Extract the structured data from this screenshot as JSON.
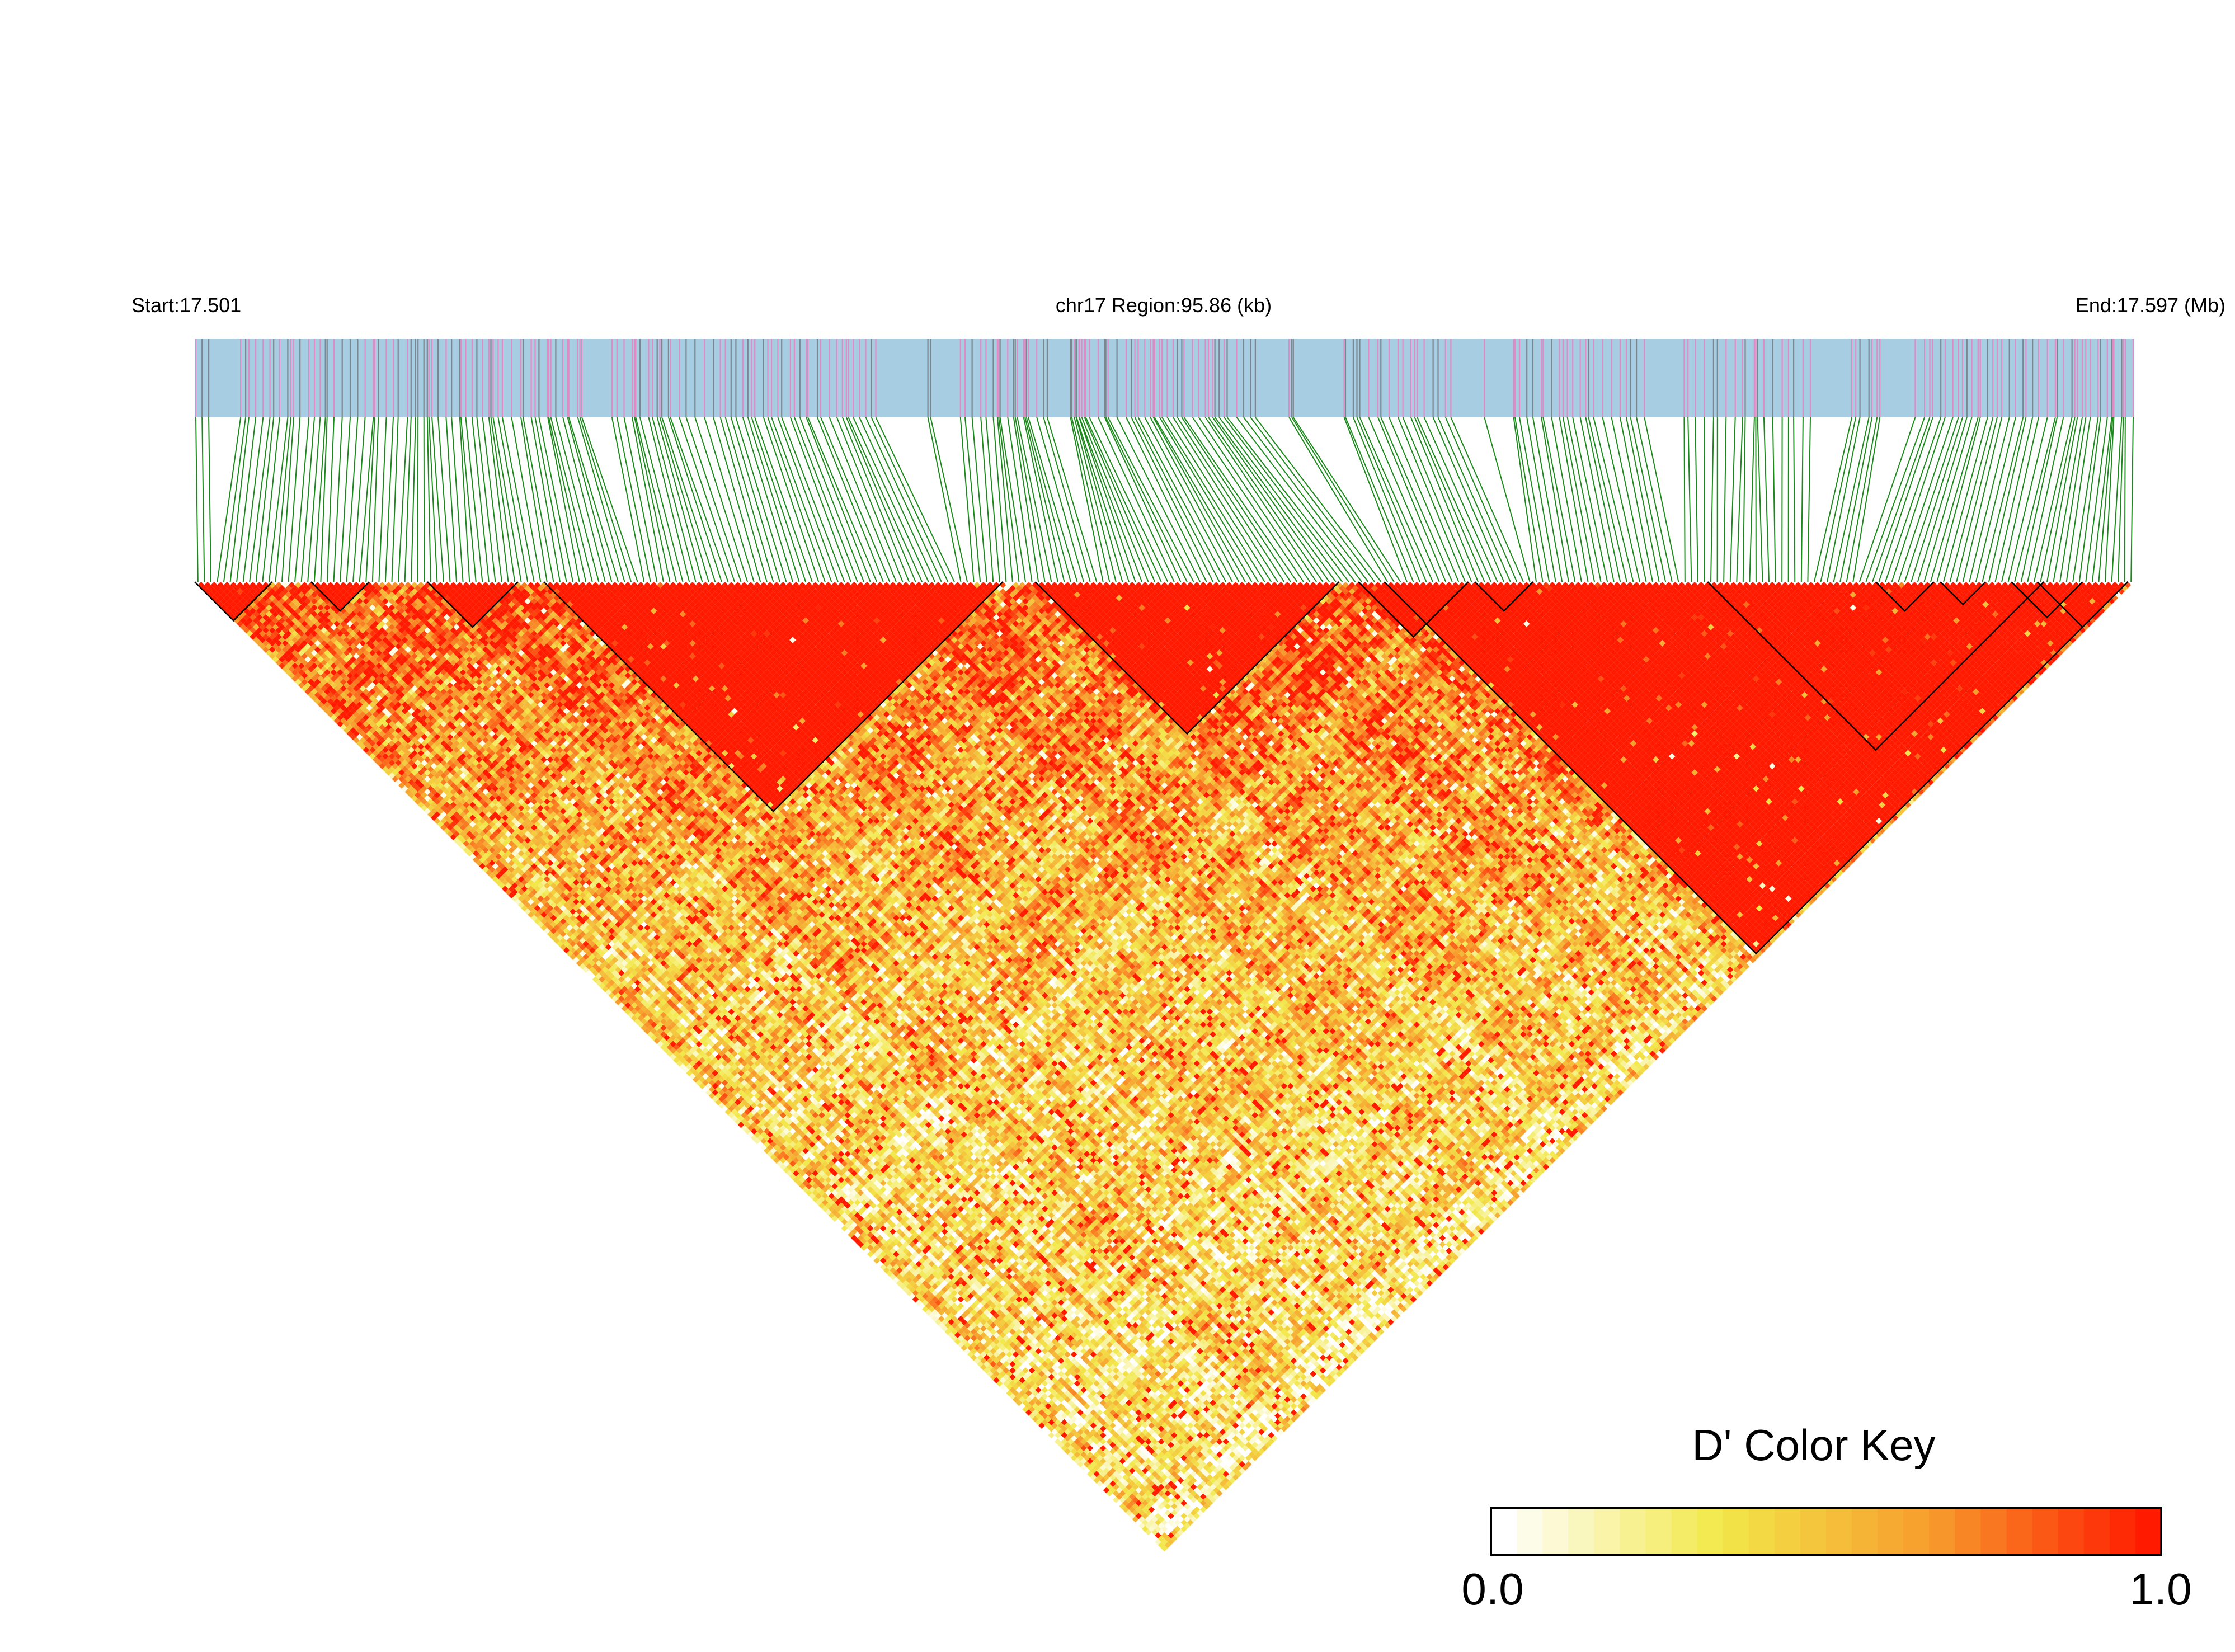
{
  "header": {
    "start_label": "Start:17.501",
    "region_label": "chr17 Region:95.86 (kb)",
    "end_label": "End:17.597 (Mb)"
  },
  "chart_data": {
    "type": "heatmap",
    "measure": "D'",
    "chromosome": "chr17",
    "start_mb": 17.501,
    "end_mb": 17.597,
    "region_kb": 95.86,
    "snp_count": 300,
    "legend": {
      "title": "D' Color Key",
      "min_label": "0.0",
      "max_label": "1.0",
      "range": [
        0.0,
        1.0
      ],
      "placement": "bottom-right",
      "colors": [
        "#ffffff",
        "#f2e84a",
        "#f79b2c",
        "#ff1a00"
      ]
    },
    "colors": {
      "track_fill": "#a7cde2",
      "snp_mark_a": "#e08ac6",
      "snp_mark_b": "#7b8790",
      "connector": "#1b8a1b",
      "block_outline": "#000000",
      "high_ld": "#ff0000"
    },
    "ld_blocks_snp_index": [
      [
        0,
        11
      ],
      [
        18,
        26
      ],
      [
        36,
        49
      ],
      [
        54,
        124
      ],
      [
        130,
        176
      ],
      [
        184,
        298
      ],
      [
        180,
        196
      ],
      [
        198,
        206
      ],
      [
        234,
        285
      ],
      [
        285,
        298
      ],
      [
        260,
        268
      ],
      [
        270,
        276
      ],
      [
        281,
        291
      ]
    ],
    "grid_lines": true
  }
}
